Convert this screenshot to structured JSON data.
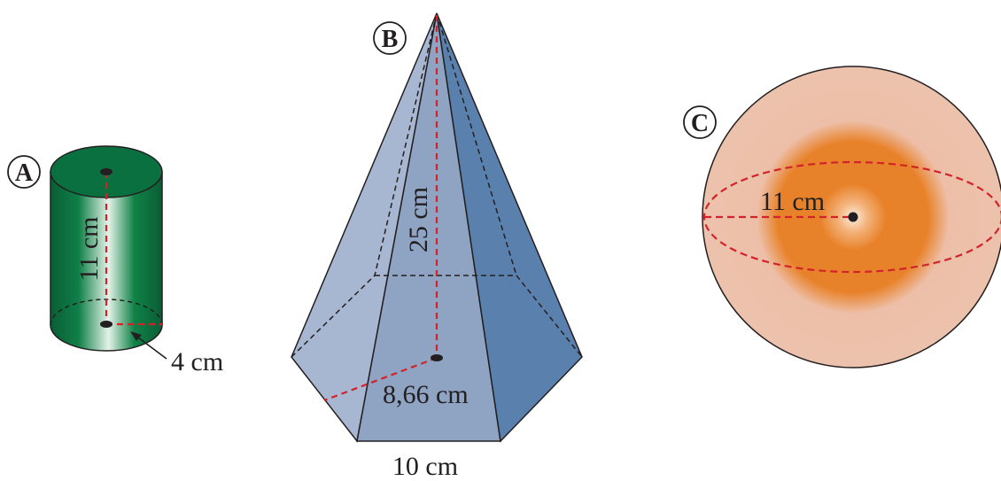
{
  "shapes": {
    "cylinder": {
      "letter": "A",
      "height_label": "11 cm",
      "radius_label": "4 cm",
      "color": "#0e7a45"
    },
    "pyramid": {
      "letter": "B",
      "height_label": "25 cm",
      "apothem_label": "8,66 cm",
      "base_edge_label": "10 cm",
      "color": "#8fa6c6"
    },
    "sphere": {
      "letter": "C",
      "radius_label": "11 cm",
      "color": "#e8822a"
    }
  },
  "colors": {
    "dash_red": "#d2232a",
    "outline": "#231f20"
  }
}
